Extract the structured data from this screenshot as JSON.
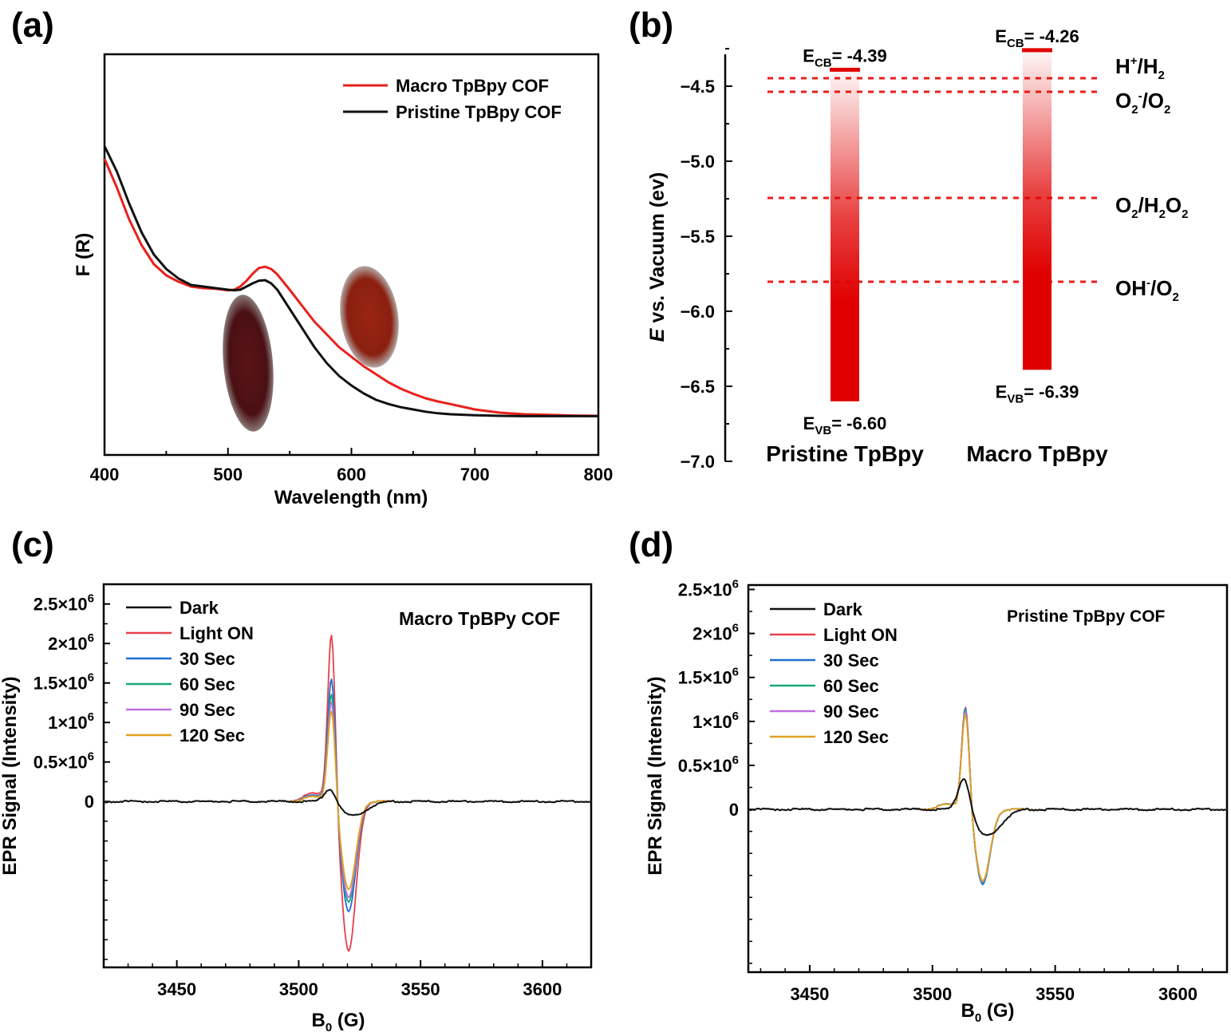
{
  "panel_labels": [
    "(a)",
    "(b)",
    "(c)",
    "(d)"
  ],
  "colors": {
    "macro": "#e8201c",
    "pristine": "#111111",
    "light_on": "#e8404a",
    "s30": "#1e6fd0",
    "s60": "#17a878",
    "s90": "#c070e0",
    "s120": "#e0a020",
    "annot": "#e8201c"
  },
  "chart_data": [
    {
      "panel": "(a)",
      "type": "line",
      "xlabel": "Wavelength (nm)",
      "ylabel": "F (R)",
      "xlim": [
        400,
        800
      ],
      "ylim": [
        0,
        1
      ],
      "xticks": [
        "400",
        "500",
        "600",
        "700",
        "800"
      ],
      "legend_position": "top-right",
      "series": [
        {
          "name": "Macro TpBpy COF",
          "color": "#e8201c",
          "x": [
            400,
            410,
            420,
            430,
            440,
            450,
            460,
            470,
            480,
            490,
            500,
            505,
            510,
            515,
            520,
            525,
            530,
            535,
            540,
            550,
            560,
            570,
            580,
            590,
            600,
            610,
            620,
            630,
            640,
            650,
            660,
            670,
            680,
            700,
            720,
            740,
            760,
            780,
            800
          ],
          "y": [
            0.81,
            0.72,
            0.62,
            0.54,
            0.48,
            0.445,
            0.425,
            0.41,
            0.405,
            0.403,
            0.398,
            0.4,
            0.41,
            0.428,
            0.45,
            0.468,
            0.472,
            0.465,
            0.448,
            0.4,
            0.35,
            0.3,
            0.26,
            0.22,
            0.19,
            0.16,
            0.135,
            0.11,
            0.09,
            0.074,
            0.06,
            0.05,
            0.042,
            0.025,
            0.015,
            0.01,
            0.008,
            0.006,
            0.005
          ]
        },
        {
          "name": "Pristine TpBpy COF",
          "color": "#111111",
          "x": [
            400,
            410,
            420,
            430,
            440,
            450,
            460,
            470,
            480,
            490,
            500,
            505,
            510,
            515,
            520,
            525,
            530,
            535,
            540,
            550,
            560,
            570,
            580,
            590,
            600,
            610,
            620,
            630,
            640,
            650,
            660,
            670,
            680,
            700,
            720,
            740,
            760,
            780,
            800
          ],
          "y": [
            0.85,
            0.77,
            0.67,
            0.58,
            0.51,
            0.465,
            0.435,
            0.415,
            0.41,
            0.405,
            0.4,
            0.398,
            0.4,
            0.41,
            0.42,
            0.428,
            0.43,
            0.42,
            0.4,
            0.34,
            0.28,
            0.22,
            0.17,
            0.13,
            0.1,
            0.075,
            0.055,
            0.042,
            0.032,
            0.025,
            0.018,
            0.013,
            0.01,
            0.007,
            0.005,
            0.004,
            0.004,
            0.004,
            0.004
          ]
        }
      ]
    },
    {
      "panel": "(b)",
      "type": "bar",
      "ylabel": "E vs. Vacuum (ev)",
      "ylim": [
        -7.0,
        -4.2
      ],
      "yticks": [
        "-4.5",
        "-5.0",
        "-5.5",
        "-6.0",
        "-6.5",
        "-7.0"
      ],
      "categories": [
        "Pristine TpBpy",
        "Macro TpBpy"
      ],
      "bands": [
        {
          "category": "Pristine TpBpy",
          "ecb": -4.39,
          "evb": -6.6,
          "ecb_label": "-4.39",
          "evb_label": "-6.60"
        },
        {
          "category": "Macro TpBpy",
          "ecb": -4.26,
          "evb": -6.39,
          "ecb_label": "-4.26",
          "evb_label": "-6.39"
        }
      ],
      "ecb_prefix": "E",
      "ecb_sub": "CB",
      "evb_prefix": "E",
      "evb_sub": "VB",
      "equals": "= ",
      "potentials": [
        {
          "value": -4.44,
          "parts": [
            "H",
            "+",
            "/H",
            "2"
          ]
        },
        {
          "value": -4.5,
          "parts": [
            "O",
            "2",
            "-",
            "/O",
            "2"
          ]
        },
        {
          "value": -5.22,
          "parts": [
            "O",
            "2",
            "/H",
            "2",
            "O",
            "2"
          ]
        },
        {
          "value": -5.79,
          "parts": [
            "OH",
            "-",
            "/O",
            "2"
          ]
        }
      ],
      "ylabel_parts": {
        "e": "E",
        "rest": " vs. Vacuum (ev)"
      }
    },
    {
      "panel": "(c)",
      "type": "line",
      "annotation": "Macro TpBPy COF",
      "xlabel_main": "B",
      "xlabel_sub": "0",
      "xlabel_rest": " (G)",
      "ylabel": "EPR Signal (Intensity)",
      "xlim": [
        3420,
        3620
      ],
      "ylim": [
        -2.1,
        2.75
      ],
      "xticks": [
        "3450",
        "3500",
        "3550",
        "3600"
      ],
      "yticks": [
        {
          "value": 2.5,
          "mant": "2.5×10",
          "exp": "6"
        },
        {
          "value": 2.0,
          "mant": "2×10",
          "exp": "6"
        },
        {
          "value": 1.5,
          "mant": "1.5×10",
          "exp": "6"
        },
        {
          "value": 1.0,
          "mant": "1×10",
          "exp": "6"
        },
        {
          "value": 0.5,
          "mant": "0.5×10",
          "exp": "6"
        },
        {
          "value": 0,
          "mant": "0",
          "exp": ""
        }
      ],
      "series": [
        {
          "name": "Dark",
          "peak": 0.2,
          "trough": -0.18
        },
        {
          "name": "Light ON",
          "peak": 2.2,
          "trough": -1.9
        },
        {
          "name": "30 Sec",
          "peak": 1.62,
          "trough": -1.4
        },
        {
          "name": "60 Sec",
          "peak": 1.42,
          "trough": -1.28
        },
        {
          "name": "90 Sec",
          "peak": 1.32,
          "trough": -1.22
        },
        {
          "name": "120 Sec",
          "peak": 1.2,
          "trough": -1.12
        }
      ]
    },
    {
      "panel": "(d)",
      "type": "line",
      "annotation": "Pristine TpBpy COF",
      "xlabel_main": "B",
      "xlabel_sub": "0",
      "xlabel_rest": " (G)",
      "ylabel": "EPR Signal (Intensity)",
      "xlim": [
        3425,
        3620
      ],
      "ylim": [
        -1.85,
        2.55
      ],
      "xticks": [
        "3450",
        "3500",
        "3550",
        "3600"
      ],
      "yticks": [
        {
          "value": 2.5,
          "mant": "2.5×10",
          "exp": "6"
        },
        {
          "value": 2.0,
          "mant": "2×10",
          "exp": "6"
        },
        {
          "value": 1.5,
          "mant": "1.5×10",
          "exp": "6"
        },
        {
          "value": 1.0,
          "mant": "1×10",
          "exp": "6"
        },
        {
          "value": 0.5,
          "mant": "0.5×10",
          "exp": "6"
        },
        {
          "value": 0,
          "mant": "0",
          "exp": ""
        }
      ],
      "series": [
        {
          "name": "Dark",
          "peak": 0.43,
          "trough": -0.3
        },
        {
          "name": "Light ON",
          "peak": 1.2,
          "trough": -0.85
        },
        {
          "name": "30 Sec",
          "peak": 1.19,
          "trough": -0.86
        },
        {
          "name": "60 Sec",
          "peak": 1.17,
          "trough": -0.84
        },
        {
          "name": "90 Sec",
          "peak": 1.15,
          "trough": -0.83
        },
        {
          "name": "120 Sec",
          "peak": 1.12,
          "trough": -0.82
        }
      ]
    }
  ]
}
